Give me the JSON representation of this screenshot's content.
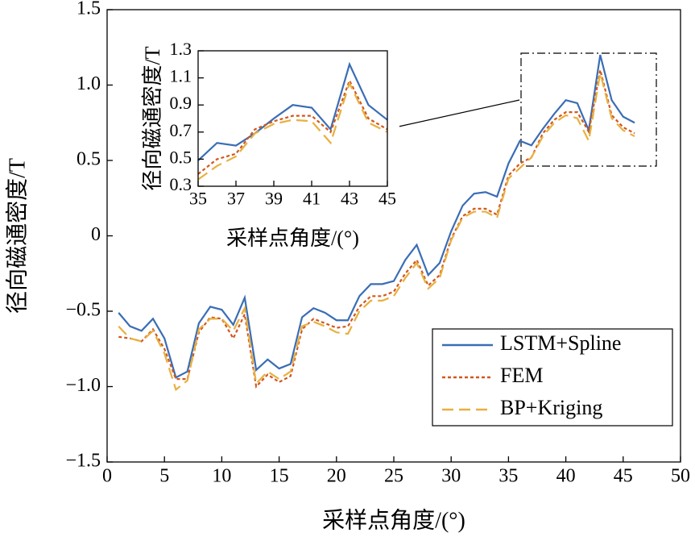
{
  "chart_data": [
    {
      "type": "line",
      "xlabel": "采样点角度/(°)",
      "ylabel": "径向磁通密度/T",
      "x": [
        1,
        2,
        3,
        4,
        5,
        6,
        7,
        8,
        9,
        10,
        11,
        12,
        13,
        14,
        15,
        16,
        17,
        18,
        19,
        20,
        21,
        22,
        23,
        24,
        25,
        26,
        27,
        28,
        29,
        30,
        31,
        32,
        33,
        34,
        35,
        36,
        37,
        38,
        39,
        40,
        41,
        42,
        43,
        44,
        45,
        46
      ],
      "xlim": [
        0,
        50
      ],
      "xticks": [
        0,
        5,
        10,
        15,
        20,
        25,
        30,
        35,
        40,
        45,
        50
      ],
      "ylim": [
        -1.5,
        1.5
      ],
      "yticks": [
        {
          "value": -1.5,
          "label": "−1.5"
        },
        {
          "value": -1.0,
          "label": "−1.0"
        },
        {
          "value": -0.5,
          "label": "−0.5"
        },
        0,
        0.5,
        {
          "value": 1.0,
          "label": "1.0"
        },
        1.5
      ],
      "legend": "lower right",
      "series": [
        {
          "name": "LSTM+Spline",
          "color": "#3a6db5",
          "dash": "solid",
          "values": [
            -0.51,
            -0.6,
            -0.63,
            -0.55,
            -0.68,
            -0.94,
            -0.9,
            -0.58,
            -0.47,
            -0.49,
            -0.59,
            -0.41,
            -0.89,
            -0.82,
            -0.88,
            -0.85,
            -0.54,
            -0.48,
            -0.51,
            -0.56,
            -0.56,
            -0.4,
            -0.32,
            -0.32,
            -0.3,
            -0.16,
            -0.06,
            -0.26,
            -0.18,
            0.03,
            0.2,
            0.28,
            0.29,
            0.26,
            0.48,
            0.63,
            0.6,
            0.71,
            0.81,
            0.9,
            0.88,
            0.7,
            1.2,
            0.9,
            0.79,
            0.75
          ]
        },
        {
          "name": "FEM",
          "color": "#d0581e",
          "dash": "short",
          "values": [
            -0.67,
            -0.68,
            -0.7,
            -0.62,
            -0.75,
            -0.95,
            -0.95,
            -0.64,
            -0.54,
            -0.55,
            -0.68,
            -0.52,
            -1.0,
            -0.92,
            -0.97,
            -0.93,
            -0.62,
            -0.55,
            -0.58,
            -0.61,
            -0.6,
            -0.47,
            -0.4,
            -0.4,
            -0.37,
            -0.25,
            -0.16,
            -0.33,
            -0.26,
            -0.02,
            0.13,
            0.18,
            0.18,
            0.14,
            0.4,
            0.48,
            0.52,
            0.68,
            0.77,
            0.82,
            0.82,
            0.69,
            1.1,
            0.8,
            0.72,
            0.68
          ]
        },
        {
          "name": "BP+Kriging",
          "color": "#e8b040",
          "dash": "long",
          "values": [
            -0.6,
            -0.68,
            -0.7,
            -0.63,
            -0.78,
            -1.02,
            -0.96,
            -0.62,
            -0.55,
            -0.55,
            -0.63,
            -0.48,
            -0.98,
            -0.9,
            -0.95,
            -0.9,
            -0.6,
            -0.57,
            -0.6,
            -0.64,
            -0.65,
            -0.5,
            -0.43,
            -0.43,
            -0.4,
            -0.28,
            -0.18,
            -0.35,
            -0.28,
            -0.03,
            0.12,
            0.16,
            0.16,
            0.12,
            0.38,
            0.45,
            0.52,
            0.66,
            0.75,
            0.8,
            0.78,
            0.63,
            1.08,
            0.78,
            0.7,
            0.66
          ]
        }
      ]
    },
    {
      "type": "line",
      "xlabel": "采样点角度/(°)",
      "ylabel": "径向磁通密度/T",
      "x": [
        35,
        36,
        37,
        38,
        39,
        40,
        41,
        42,
        43,
        44,
        45
      ],
      "xlim": [
        35,
        45
      ],
      "xticks": [
        35,
        37,
        39,
        41,
        43,
        45
      ],
      "ylim": [
        0.3,
        1.3
      ],
      "yticks": [
        0.3,
        0.5,
        0.7,
        0.9,
        1.1,
        1.3
      ],
      "series": [
        {
          "color": "#3a6db5",
          "dash": "solid",
          "values": [
            0.49,
            0.62,
            0.6,
            0.69,
            0.8,
            0.9,
            0.88,
            0.72,
            1.2,
            0.9,
            0.79
          ]
        },
        {
          "color": "#d0581e",
          "dash": "short",
          "values": [
            0.39,
            0.5,
            0.54,
            0.72,
            0.78,
            0.82,
            0.82,
            0.7,
            1.08,
            0.8,
            0.72
          ]
        },
        {
          "color": "#e8b040",
          "dash": "long",
          "values": [
            0.35,
            0.45,
            0.52,
            0.69,
            0.76,
            0.79,
            0.78,
            0.62,
            1.06,
            0.77,
            0.7
          ]
        }
      ]
    }
  ]
}
